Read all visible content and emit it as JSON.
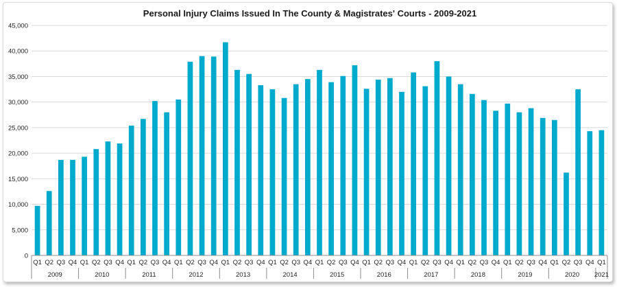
{
  "chart_data": {
    "type": "bar",
    "title": "Personal Injury Claims Issued In The County & Magistrates' Courts - 2009-2021",
    "xlabel": "",
    "ylabel": "",
    "ylim": [
      0,
      45000
    ],
    "yticks": [
      "0",
      "5,000",
      "10,000",
      "15,000",
      "20,000",
      "25,000",
      "30,000",
      "35,000",
      "40,000",
      "45,000"
    ],
    "ytick_values": [
      0,
      5000,
      10000,
      15000,
      20000,
      25000,
      30000,
      35000,
      40000,
      45000
    ],
    "grid": true,
    "legend": "none",
    "bar_color": "#00aacc",
    "categories": [
      "Q1",
      "Q2",
      "Q3",
      "Q4",
      "Q1",
      "Q2",
      "Q3",
      "Q4",
      "Q1",
      "Q2",
      "Q3",
      "Q4",
      "Q1",
      "Q2",
      "Q3",
      "Q4",
      "Q1",
      "Q2",
      "Q3",
      "Q4",
      "Q1",
      "Q2",
      "Q3",
      "Q4",
      "Q1",
      "Q2",
      "Q3",
      "Q4",
      "Q1",
      "Q2",
      "Q3",
      "Q4",
      "Q1",
      "Q2",
      "Q3",
      "Q4",
      "Q1",
      "Q2",
      "Q3",
      "Q4",
      "Q1",
      "Q2",
      "Q3",
      "Q4",
      "Q1",
      "Q2",
      "Q3",
      "Q4",
      "Q1"
    ],
    "year_groups": [
      {
        "label": "2009",
        "count": 4
      },
      {
        "label": "2010",
        "count": 4
      },
      {
        "label": "2011",
        "count": 4
      },
      {
        "label": "2012",
        "count": 4
      },
      {
        "label": "2013",
        "count": 4
      },
      {
        "label": "2014",
        "count": 4
      },
      {
        "label": "2015",
        "count": 4
      },
      {
        "label": "2016",
        "count": 4
      },
      {
        "label": "2017",
        "count": 4
      },
      {
        "label": "2018",
        "count": 4
      },
      {
        "label": "2019",
        "count": 4
      },
      {
        "label": "2020",
        "count": 4
      },
      {
        "label": "2021",
        "count": 1
      }
    ],
    "values": [
      9700,
      12600,
      18700,
      18700,
      19300,
      20800,
      22300,
      21900,
      25400,
      26700,
      30200,
      28000,
      30500,
      37900,
      39000,
      38900,
      41700,
      36300,
      35500,
      33300,
      32500,
      30800,
      33500,
      34500,
      36300,
      33900,
      35100,
      37200,
      32600,
      34400,
      34700,
      32000,
      35800,
      33100,
      38000,
      35000,
      33500,
      31600,
      30400,
      28300,
      29700,
      28000,
      28800,
      26900,
      26500,
      16200,
      32500,
      24300,
      24500
    ]
  }
}
